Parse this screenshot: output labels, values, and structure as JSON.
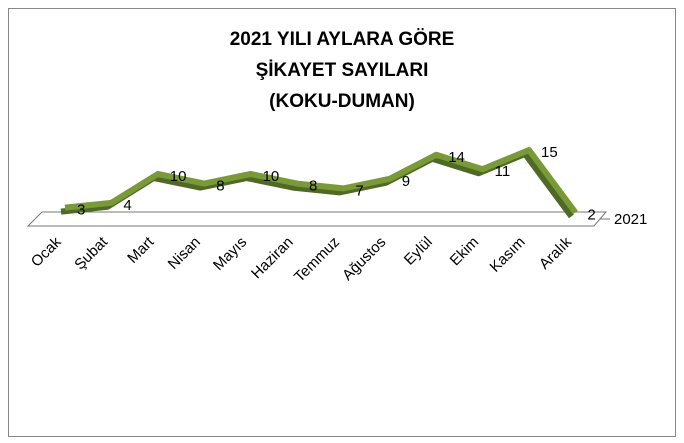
{
  "chart_data": {
    "type": "line",
    "title": [
      "2021 YILI AYLARA GÖRE",
      "ŞİKAYET SAYILARI",
      "(KOKU-DUMAN)"
    ],
    "categories": [
      "Ocak",
      "Şubat",
      "Mart",
      "Nisan",
      "Mayıs",
      "Haziran",
      "Temmuz",
      "Ağustos",
      "Eylül",
      "Ekim",
      "Kasım",
      "Aralık"
    ],
    "series": [
      {
        "name": "2021",
        "color": "#7a9a3a",
        "values": [
          3,
          4,
          10,
          8,
          10,
          8,
          7,
          9,
          14,
          11,
          15,
          2
        ]
      }
    ]
  }
}
